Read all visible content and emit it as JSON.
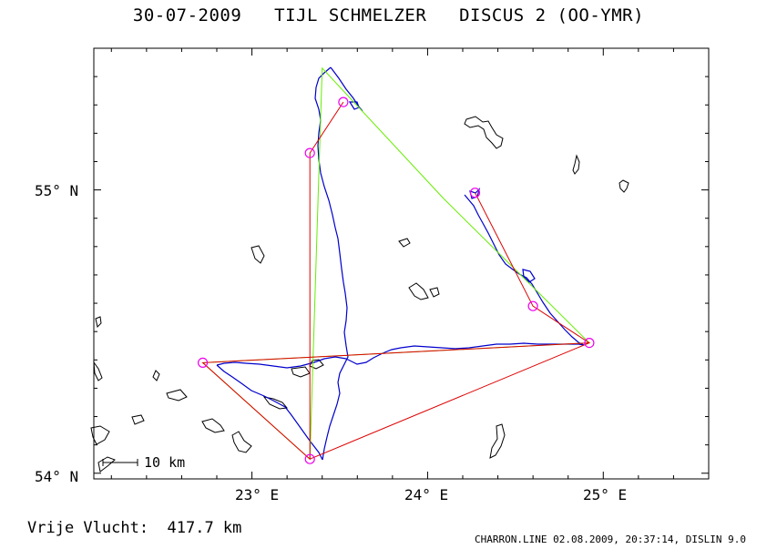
{
  "title": "30-07-2009   TIJL SCHMELZER   DISCUS 2 (OO-YMR)",
  "axes": {
    "x_ticks": [
      "23° E",
      "24° E",
      "25° E"
    ],
    "y_ticks": [
      "55° N",
      "54° N"
    ]
  },
  "scale_bar": {
    "label": "10 km"
  },
  "distance": "Vrije Vlucht:  417.7 km",
  "meta": "CHARRON.LINE 02.08.2009, 20:37:14, DISLIN 9.0",
  "colors": {
    "frame": "#000000",
    "track": "#0000cc",
    "task_green": "#66ee00",
    "task_red": "#dd0000",
    "turnpoint": "#ee00ee"
  },
  "map_data": {
    "type": "flight_map",
    "lon_range": [
      22.1,
      25.6
    ],
    "lat_range": [
      53.98,
      55.5
    ],
    "green_task": [
      [
        22.72,
        54.39
      ],
      [
        24.92,
        54.46
      ],
      [
        24.09,
        54.97
      ],
      [
        23.4,
        55.43
      ],
      [
        23.33,
        54.05
      ],
      [
        22.72,
        54.39
      ]
    ],
    "red_route": [
      [
        23.33,
        54.05
      ],
      [
        23.33,
        55.13
      ],
      [
        23.52,
        55.31
      ],
      [
        23.33,
        55.13
      ],
      [
        23.33,
        54.05
      ],
      [
        22.72,
        54.39
      ],
      [
        24.92,
        54.46
      ],
      [
        24.6,
        54.59
      ],
      [
        24.27,
        54.99
      ],
      [
        24.6,
        54.59
      ],
      [
        24.92,
        54.46
      ],
      [
        23.33,
        54.05
      ]
    ],
    "turnpoints": [
      [
        22.72,
        54.39
      ],
      [
        23.33,
        54.05
      ],
      [
        23.33,
        55.13
      ],
      [
        23.52,
        55.31
      ],
      [
        24.92,
        54.46
      ],
      [
        24.6,
        54.59
      ],
      [
        24.27,
        54.99
      ]
    ]
  }
}
